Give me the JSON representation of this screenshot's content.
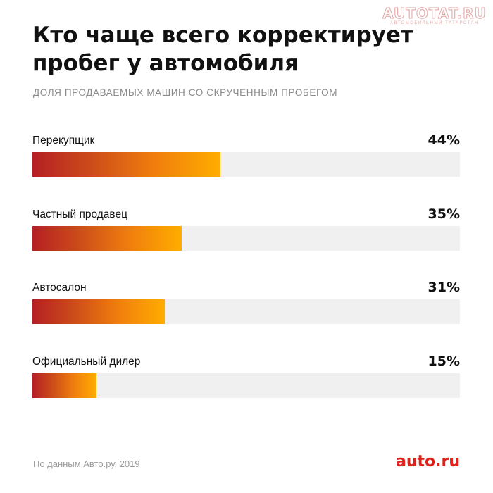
{
  "watermark": {
    "main": "AUTOTAT.RU",
    "sub": "АВТОМОБИЛЬНЫЙ ТАТАРСТАН"
  },
  "title": "Кто чаще всего корректирует пробег у автомобиля",
  "subtitle": "ДОЛЯ ПРОДАВАЕМЫХ МАШИН СО СКРУЧЕННЫМ ПРОБЕГОМ",
  "source": "По данным Авто.ру, 2019",
  "logo": "auto.ru",
  "colors": {
    "bar_start": "#b51f24",
    "bar_end": "#ffad00",
    "track": "#f0f0f0",
    "logo": "#e0201b"
  },
  "chart_data": {
    "type": "bar",
    "orientation": "horizontal",
    "categories": [
      "Перекупщик",
      "Частный продавец",
      "Автосалон",
      "Официальный дилер"
    ],
    "values": [
      44,
      35,
      31,
      15
    ],
    "value_labels": [
      "44%",
      "35%",
      "31%",
      "15%"
    ],
    "unit": "%",
    "xlim": [
      0,
      100
    ],
    "title": "Кто чаще всего корректирует пробег у автомобиля",
    "subtitle": "ДОЛЯ ПРОДАВАЕМЫХ МАШИН СО СКРУЧЕННЫМ ПРОБЕГОМ",
    "grid": false,
    "legend": "none"
  }
}
